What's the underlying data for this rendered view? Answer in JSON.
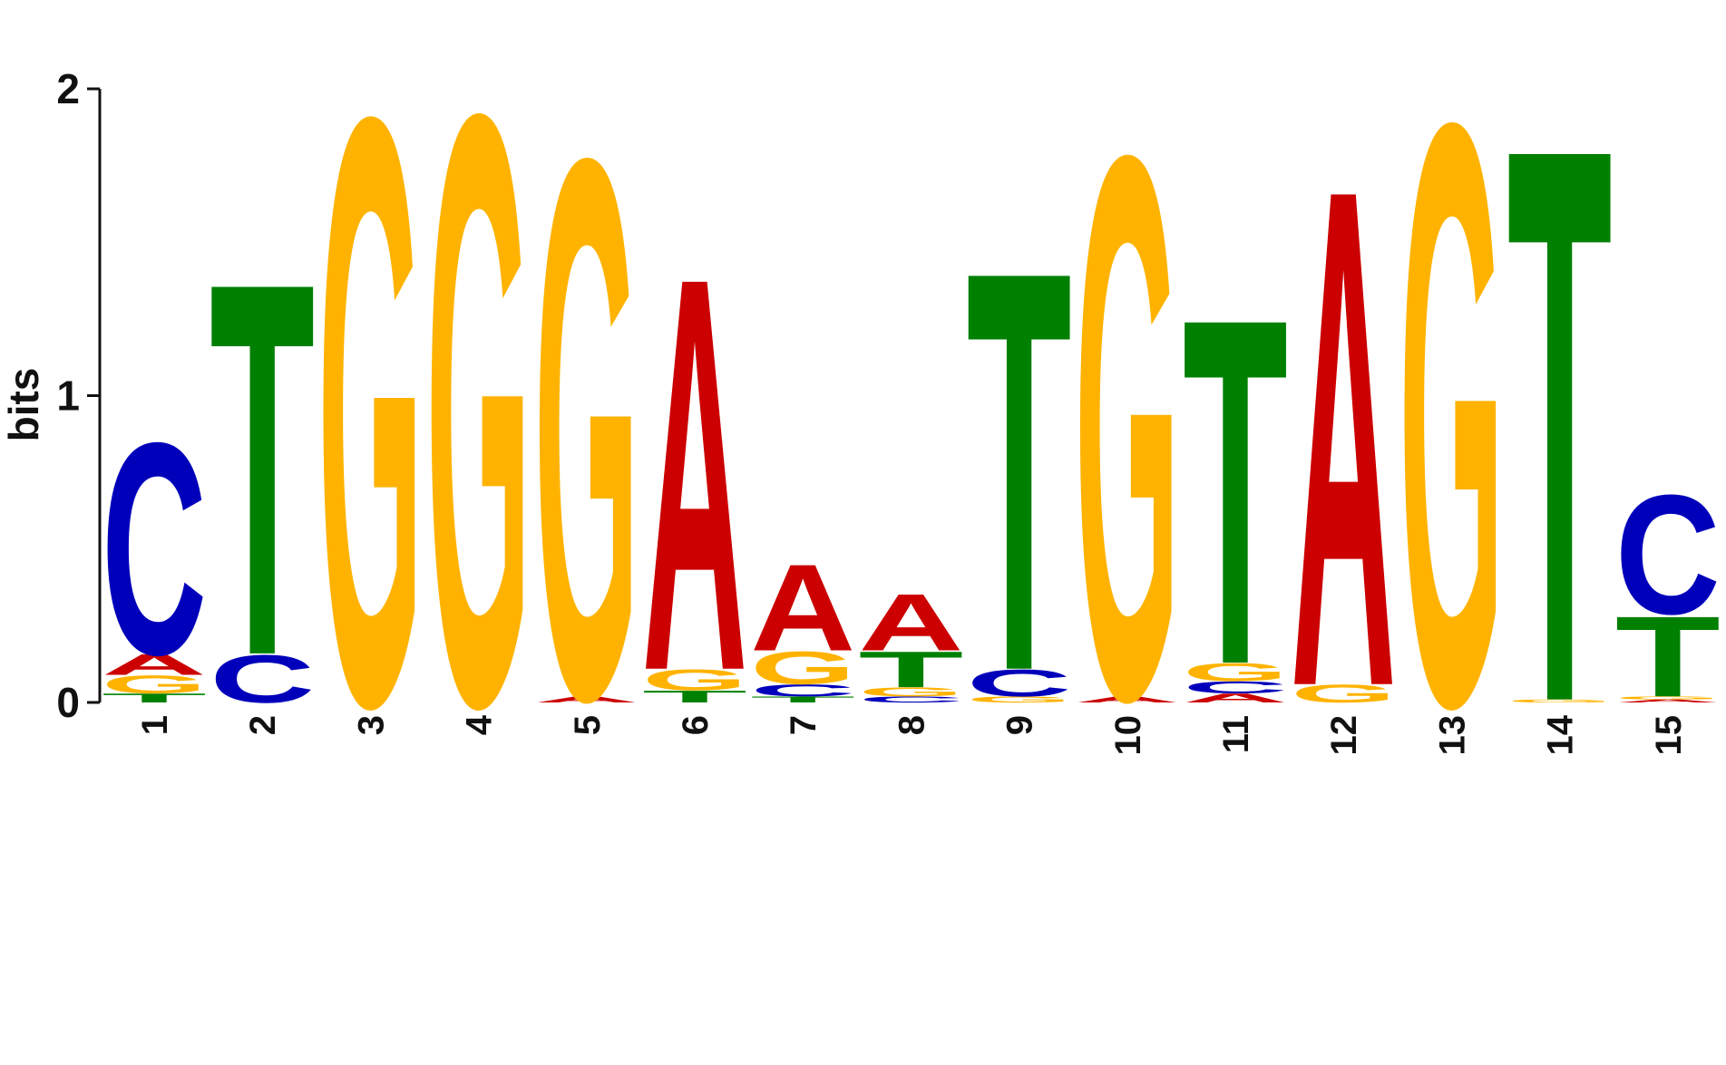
{
  "chart_data": {
    "type": "sequence-logo",
    "ylabel": "bits",
    "ylim": [
      0,
      2
    ],
    "yticks": [
      0,
      1,
      2
    ],
    "colors": {
      "A": "#cc0000",
      "C": "#0000bb",
      "G": "#ffb300",
      "T": "#008000"
    },
    "positions": [
      {
        "label": "1",
        "letters": [
          {
            "base": "T",
            "bits": 0.03
          },
          {
            "base": "G",
            "bits": 0.06
          },
          {
            "base": "A",
            "bits": 0.07
          },
          {
            "base": "C",
            "bits": 0.71
          }
        ]
      },
      {
        "label": "2",
        "letters": [
          {
            "base": "C",
            "bits": 0.16
          },
          {
            "base": "T",
            "bits": 1.25
          }
        ]
      },
      {
        "label": "3",
        "letters": [
          {
            "base": "G",
            "bits": 1.97
          }
        ]
      },
      {
        "label": "4",
        "letters": [
          {
            "base": "G",
            "bits": 1.98
          }
        ]
      },
      {
        "label": "5",
        "letters": [
          {
            "base": "A",
            "bits": 0.02
          },
          {
            "base": "G",
            "bits": 1.81
          }
        ]
      },
      {
        "label": "6",
        "letters": [
          {
            "base": "T",
            "bits": 0.04
          },
          {
            "base": "G",
            "bits": 0.07
          },
          {
            "base": "A",
            "bits": 1.32
          }
        ]
      },
      {
        "label": "7",
        "letters": [
          {
            "base": "T",
            "bits": 0.02
          },
          {
            "base": "C",
            "bits": 0.04
          },
          {
            "base": "G",
            "bits": 0.11
          },
          {
            "base": "A",
            "bits": 0.29
          }
        ]
      },
      {
        "label": "8",
        "letters": [
          {
            "base": "C",
            "bits": 0.02
          },
          {
            "base": "G",
            "bits": 0.03
          },
          {
            "base": "T",
            "bits": 0.12
          },
          {
            "base": "A",
            "bits": 0.19
          }
        ]
      },
      {
        "label": "9",
        "letters": [
          {
            "base": "G",
            "bits": 0.02
          },
          {
            "base": "C",
            "bits": 0.09
          },
          {
            "base": "T",
            "bits": 1.34
          }
        ]
      },
      {
        "label": "10",
        "letters": [
          {
            "base": "A",
            "bits": 0.02
          },
          {
            "base": "G",
            "bits": 1.82
          }
        ]
      },
      {
        "label": "11",
        "letters": [
          {
            "base": "A",
            "bits": 0.03
          },
          {
            "base": "C",
            "bits": 0.04
          },
          {
            "base": "G",
            "bits": 0.06
          },
          {
            "base": "T",
            "bits": 1.16
          }
        ]
      },
      {
        "label": "12",
        "letters": [
          {
            "base": "G",
            "bits": 0.06
          },
          {
            "base": "A",
            "bits": 1.67
          }
        ]
      },
      {
        "label": "13",
        "letters": [
          {
            "base": "G",
            "bits": 1.95
          }
        ]
      },
      {
        "label": "14",
        "letters": [
          {
            "base": "G",
            "bits": 0.01
          },
          {
            "base": "T",
            "bits": 1.86
          }
        ]
      },
      {
        "label": "15",
        "letters": [
          {
            "base": "A",
            "bits": 0.01
          },
          {
            "base": "G",
            "bits": 0.01
          },
          {
            "base": "T",
            "bits": 0.27
          },
          {
            "base": "C",
            "bits": 0.4
          }
        ]
      }
    ]
  }
}
